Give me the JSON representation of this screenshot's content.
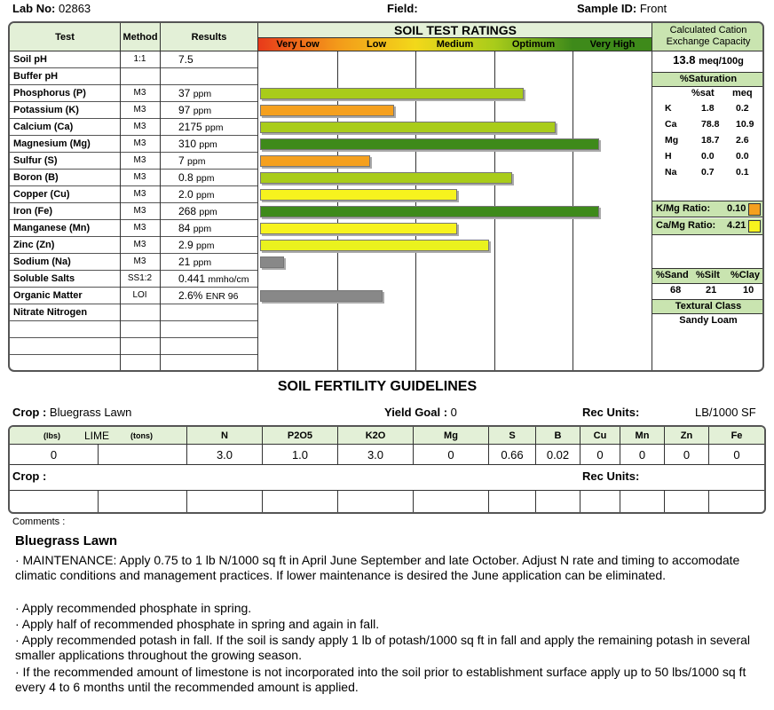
{
  "header": {
    "lab_no_label": "Lab No:",
    "lab_no": "02863",
    "field_label": "Field:",
    "field": "",
    "sample_label": "Sample ID:",
    "sample": "Front"
  },
  "table": {
    "col_test": "Test",
    "col_method": "Method",
    "col_results": "Results",
    "ratings_title": "SOIL TEST RATINGS",
    "bands": [
      {
        "label": "Very Low",
        "color": "#e83a1a"
      },
      {
        "label": "Low",
        "color": "#f39a1a"
      },
      {
        "label": "Medium",
        "color": "#f2d81a"
      },
      {
        "label": "Optimum",
        "color": "#a9cc1a"
      },
      {
        "label": "Very High",
        "color": "#3e8a1a"
      }
    ],
    "rows": [
      {
        "name": "Soil pH",
        "method": "1:1",
        "value": "7.5",
        "unit": "",
        "level": null,
        "color": null
      },
      {
        "name": "Buffer pH",
        "method": "",
        "value": "",
        "unit": "",
        "level": null,
        "color": null
      },
      {
        "name": "Phosphorus (P)",
        "method": "M3",
        "value": "37",
        "unit": "ppm",
        "level": 0.67,
        "color": "#a9cc1a"
      },
      {
        "name": "Potassium (K)",
        "method": "M3",
        "value": "97",
        "unit": "ppm",
        "level": 0.34,
        "color": "#f5a01e"
      },
      {
        "name": "Calcium (Ca)",
        "method": "M3",
        "value": "2175",
        "unit": "ppm",
        "level": 0.75,
        "color": "#a9cc1a"
      },
      {
        "name": "Magnesium (Mg)",
        "method": "M3",
        "value": "310",
        "unit": "ppm",
        "level": 0.86,
        "color": "#3e8a1a"
      },
      {
        "name": "Sulfur (S)",
        "method": "M3",
        "value": "7",
        "unit": "ppm",
        "level": 0.28,
        "color": "#f5a01e"
      },
      {
        "name": "Boron (B)",
        "method": "M3",
        "value": "0.8",
        "unit": "ppm",
        "level": 0.64,
        "color": "#a9cc1a"
      },
      {
        "name": "Copper (Cu)",
        "method": "M3",
        "value": "2.0",
        "unit": "ppm",
        "level": 0.5,
        "color": "#f7f31e"
      },
      {
        "name": "Iron (Fe)",
        "method": "M3",
        "value": "268",
        "unit": "ppm",
        "level": 0.86,
        "color": "#3e8a1a"
      },
      {
        "name": "Manganese (Mn)",
        "method": "M3",
        "value": "84",
        "unit": "ppm",
        "level": 0.5,
        "color": "#f7f31e"
      },
      {
        "name": "Zinc (Zn)",
        "method": "M3",
        "value": "2.9",
        "unit": "ppm",
        "level": 0.58,
        "color": "#eaf21e"
      },
      {
        "name": "Sodium (Na)",
        "method": "M3",
        "value": "21",
        "unit": "ppm",
        "level": 0.06,
        "color": "#888888"
      },
      {
        "name": "Soluble Salts",
        "method": "SS1:2",
        "value": "0.441",
        "unit": "mmho/cm",
        "level": null,
        "color": null
      },
      {
        "name": "Organic Matter",
        "method": "LOI",
        "value": "2.6%",
        "unit": "ENR  96",
        "level": 0.31,
        "color": "#888888"
      },
      {
        "name": "Nitrate Nitrogen",
        "method": "",
        "value": "",
        "unit": "",
        "level": null,
        "color": null
      }
    ]
  },
  "cec": {
    "title_line1": "Calculated Cation",
    "title_line2": "Exchange Capacity",
    "value": "13.8",
    "unit": "meq/100g",
    "sat_title": "%Saturation",
    "col_sat": "%sat",
    "col_meq": "meq",
    "rows": [
      {
        "ion": "K",
        "sat": "1.8",
        "meq": "0.2"
      },
      {
        "ion": "Ca",
        "sat": "78.8",
        "meq": "10.9"
      },
      {
        "ion": "Mg",
        "sat": "18.7",
        "meq": "2.6"
      },
      {
        "ion": "H",
        "sat": "0.0",
        "meq": "0.0"
      },
      {
        "ion": "Na",
        "sat": "0.7",
        "meq": "0.1"
      }
    ],
    "kmg_label": "K/Mg Ratio:",
    "kmg": "0.10",
    "kmg_color": "#f5a01e",
    "camg_label": "Ca/Mg Ratio:",
    "camg": "4.21",
    "camg_color": "#f7f31e",
    "sand_label": "%Sand",
    "silt_label": "%Silt",
    "clay_label": "%Clay",
    "sand": "68",
    "silt": "21",
    "clay": "10",
    "texture_title": "Textural Class",
    "texture": "Sandy Loam"
  },
  "guidelines": {
    "title": "SOIL FERTILITY GUIDELINES",
    "crop_label": "Crop :",
    "crop": "Bluegrass Lawn",
    "yield_label": "Yield Goal :",
    "yield": "0",
    "rec_label": "Rec Units:",
    "rec_units": "LB/1000 SF",
    "crop2_label": "Crop :",
    "rec2_label": "Rec Units:",
    "lime_lbs": "(lbs)",
    "lime": "LIME",
    "lime_tons": "(tons)",
    "nutrients": [
      "N",
      "P2O5",
      "K2O",
      "Mg",
      "S",
      "B",
      "Cu",
      "Mn",
      "Zn",
      "Fe"
    ],
    "lime_value": "0",
    "values": [
      "3.0",
      "1.0",
      "3.0",
      "0",
      "0.66",
      "0.02",
      "0",
      "0",
      "0",
      "0"
    ]
  },
  "comments": {
    "label": "Comments :",
    "heading": "Bluegrass Lawn",
    "p1": "·  MAINTENANCE:  Apply 0.75 to 1 lb N/1000 sq ft in April June September and late October.  Adjust N rate and timing to accomodate climatic conditions and management practices.  If lower maintenance is desired the June application can be eliminated.",
    "p2": "   ·  Apply recommended phosphate in spring.",
    "p3": "   ·  Apply half of recommended phosphate in spring and again in fall.",
    "p4": "   ·  Apply recommended potash in fall. If the soil is sandy apply 1 lb of potash/1000 sq ft in fall and apply the remaining potash in several smaller applications throughout the growing season.",
    "p5": "    ·  If the recommended amount of limestone is not incorporated into the soil prior to establishment surface apply up to 50 lbs/1000 sq ft every 4 to 6 months until the recommended amount is applied."
  }
}
